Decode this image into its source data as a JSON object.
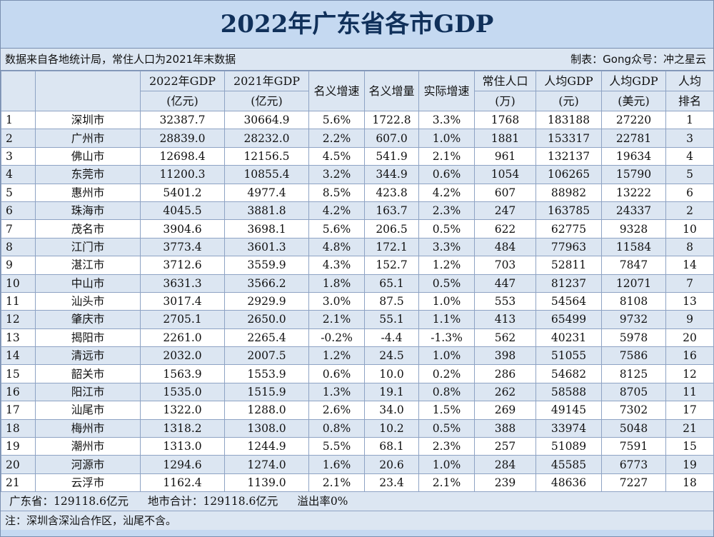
{
  "title": "2022年广东省各市GDP",
  "info": {
    "source": "数据来自各地统计局，常住人口为2021年末数据",
    "author": "制表：Gong众号：冲之星云"
  },
  "headers": [
    {
      "l1": "",
      "l2": ""
    },
    {
      "l1": "",
      "l2": ""
    },
    {
      "l1": "2022年GDP",
      "l2": "(亿元)"
    },
    {
      "l1": "2021年GDP",
      "l2": "(亿元)"
    },
    {
      "l1": "名义增速",
      "l2": ""
    },
    {
      "l1": "名义增量",
      "l2": ""
    },
    {
      "l1": "实际增速",
      "l2": ""
    },
    {
      "l1": "常住人口",
      "l2": "(万)"
    },
    {
      "l1": "人均GDP",
      "l2": "(元)"
    },
    {
      "l1": "人均GDP",
      "l2": "(美元)"
    },
    {
      "l1": "人均",
      "l2": "排名"
    }
  ],
  "rows": [
    [
      "1",
      "深圳市",
      "32387.7",
      "30664.9",
      "5.6%",
      "1722.8",
      "3.3%",
      "1768",
      "183188",
      "27220",
      "1"
    ],
    [
      "2",
      "广州市",
      "28839.0",
      "28232.0",
      "2.2%",
      "607.0",
      "1.0%",
      "1881",
      "153317",
      "22781",
      "3"
    ],
    [
      "3",
      "佛山市",
      "12698.4",
      "12156.5",
      "4.5%",
      "541.9",
      "2.1%",
      "961",
      "132137",
      "19634",
      "4"
    ],
    [
      "4",
      "东莞市",
      "11200.3",
      "10855.4",
      "3.2%",
      "344.9",
      "0.6%",
      "1054",
      "106265",
      "15790",
      "5"
    ],
    [
      "5",
      "惠州市",
      "5401.2",
      "4977.4",
      "8.5%",
      "423.8",
      "4.2%",
      "607",
      "88982",
      "13222",
      "6"
    ],
    [
      "6",
      "珠海市",
      "4045.5",
      "3881.8",
      "4.2%",
      "163.7",
      "2.3%",
      "247",
      "163785",
      "24337",
      "2"
    ],
    [
      "7",
      "茂名市",
      "3904.6",
      "3698.1",
      "5.6%",
      "206.5",
      "0.5%",
      "622",
      "62775",
      "9328",
      "10"
    ],
    [
      "8",
      "江门市",
      "3773.4",
      "3601.3",
      "4.8%",
      "172.1",
      "3.3%",
      "484",
      "77963",
      "11584",
      "8"
    ],
    [
      "9",
      "湛江市",
      "3712.6",
      "3559.9",
      "4.3%",
      "152.7",
      "1.2%",
      "703",
      "52811",
      "7847",
      "14"
    ],
    [
      "10",
      "中山市",
      "3631.3",
      "3566.2",
      "1.8%",
      "65.1",
      "0.5%",
      "447",
      "81237",
      "12071",
      "7"
    ],
    [
      "11",
      "汕头市",
      "3017.4",
      "2929.9",
      "3.0%",
      "87.5",
      "1.0%",
      "553",
      "54564",
      "8108",
      "13"
    ],
    [
      "12",
      "肇庆市",
      "2705.1",
      "2650.0",
      "2.1%",
      "55.1",
      "1.1%",
      "413",
      "65499",
      "9732",
      "9"
    ],
    [
      "13",
      "揭阳市",
      "2261.0",
      "2265.4",
      "-0.2%",
      "-4.4",
      "-1.3%",
      "562",
      "40231",
      "5978",
      "20"
    ],
    [
      "14",
      "清远市",
      "2032.0",
      "2007.5",
      "1.2%",
      "24.5",
      "1.0%",
      "398",
      "51055",
      "7586",
      "16"
    ],
    [
      "15",
      "韶关市",
      "1563.9",
      "1553.9",
      "0.6%",
      "10.0",
      "0.2%",
      "286",
      "54682",
      "8125",
      "12"
    ],
    [
      "16",
      "阳江市",
      "1535.0",
      "1515.9",
      "1.3%",
      "19.1",
      "0.8%",
      "262",
      "58588",
      "8705",
      "11"
    ],
    [
      "17",
      "汕尾市",
      "1322.0",
      "1288.0",
      "2.6%",
      "34.0",
      "1.5%",
      "269",
      "49145",
      "7302",
      "17"
    ],
    [
      "18",
      "梅州市",
      "1318.2",
      "1308.0",
      "0.8%",
      "10.2",
      "0.5%",
      "388",
      "33974",
      "5048",
      "21"
    ],
    [
      "19",
      "潮州市",
      "1313.0",
      "1244.9",
      "5.5%",
      "68.1",
      "2.3%",
      "257",
      "51089",
      "7591",
      "15"
    ],
    [
      "20",
      "河源市",
      "1294.6",
      "1274.0",
      "1.6%",
      "20.6",
      "1.0%",
      "284",
      "45585",
      "6773",
      "19"
    ],
    [
      "21",
      "云浮市",
      "1162.4",
      "1139.0",
      "2.1%",
      "23.4",
      "2.1%",
      "239",
      "48636",
      "7227",
      "18"
    ]
  ],
  "footer": {
    "province": "广东省：129118.6亿元",
    "city_sum": "地市合计：129118.6亿元",
    "overflow": "溢出率0%"
  },
  "note": "注：深圳含深汕合作区，汕尾不含。"
}
